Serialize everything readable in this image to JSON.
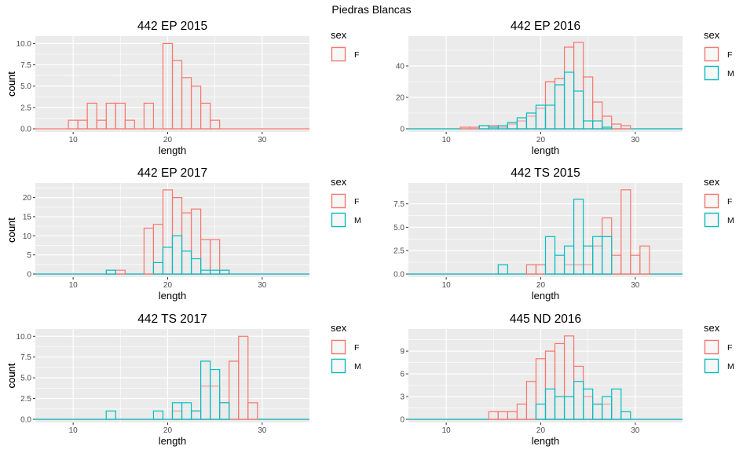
{
  "page": {
    "title": "Piedras Blancas"
  },
  "colors": {
    "F": "#F8766D",
    "M": "#00BFC4",
    "panel_bg": "#EBEBEB",
    "grid": "#FFFFFF",
    "text": "#000000",
    "tick_text": "#4D4D4D"
  },
  "chart_data": [
    {
      "type": "bar",
      "title": "442 EP 2015",
      "xlabel": "length",
      "ylabel": "count",
      "xlim": [
        6,
        35
      ],
      "ylim": [
        0,
        10.5
      ],
      "x_ticks": [
        10,
        20,
        30
      ],
      "y_ticks": [
        0,
        2.5,
        5,
        7.5,
        10
      ],
      "y_tick_labels": [
        "0.0",
        "2.5",
        "5.0",
        "7.5",
        "10.0"
      ],
      "legend": {
        "title": "sex",
        "items": [
          "F"
        ],
        "position": "right"
      },
      "series": [
        {
          "name": "F",
          "x": [
            10,
            11,
            12,
            13,
            14,
            15,
            16,
            17,
            18,
            19,
            20,
            21,
            22,
            23,
            24,
            25
          ],
          "values": [
            1,
            1,
            3,
            1,
            3,
            3,
            1,
            0,
            3,
            0,
            10,
            8,
            6,
            5,
            3,
            1
          ]
        }
      ]
    },
    {
      "type": "bar",
      "title": "442 EP 2016",
      "xlabel": "length",
      "ylabel": "count",
      "xlim": [
        6,
        35
      ],
      "ylim": [
        0,
        57
      ],
      "x_ticks": [
        10,
        20,
        30
      ],
      "y_ticks": [
        0,
        20,
        40
      ],
      "y_tick_labels": [
        "0",
        "20",
        "40"
      ],
      "legend": {
        "title": "sex",
        "items": [
          "F",
          "M"
        ],
        "position": "right"
      },
      "series": [
        {
          "name": "F",
          "x": [
            12,
            13,
            14,
            15,
            16,
            17,
            18,
            19,
            20,
            21,
            22,
            23,
            24,
            25,
            26,
            27,
            28,
            29
          ],
          "values": [
            1,
            1,
            2,
            2,
            1,
            3,
            5,
            8,
            13,
            30,
            32,
            52,
            55,
            33,
            17,
            8,
            3,
            2
          ]
        },
        {
          "name": "M",
          "x": [
            14,
            15,
            16,
            17,
            18,
            19,
            20,
            21,
            22,
            23,
            24,
            25,
            26,
            27
          ],
          "values": [
            2,
            1,
            2,
            4,
            7,
            10,
            15,
            15,
            28,
            36,
            24,
            5,
            5,
            1
          ]
        }
      ]
    },
    {
      "type": "bar",
      "title": "442 EP 2017",
      "xlabel": "length",
      "ylabel": "count",
      "xlim": [
        6,
        35
      ],
      "ylim": [
        0,
        23
      ],
      "x_ticks": [
        10,
        20,
        30
      ],
      "y_ticks": [
        0,
        5,
        10,
        15,
        20
      ],
      "y_tick_labels": [
        "0",
        "5",
        "10",
        "15",
        "20"
      ],
      "legend": {
        "title": "sex",
        "items": [
          "F",
          "M"
        ],
        "position": "right"
      },
      "series": [
        {
          "name": "F",
          "x": [
            14,
            15,
            18,
            19,
            20,
            21,
            22,
            23,
            24,
            25,
            26
          ],
          "values": [
            1,
            1,
            12,
            13,
            22,
            20,
            16,
            17,
            9,
            9,
            1
          ]
        },
        {
          "name": "M",
          "x": [
            14,
            15,
            19,
            20,
            21,
            22,
            23,
            24,
            25,
            26
          ],
          "values": [
            1,
            0,
            3,
            7,
            10,
            6,
            4,
            1,
            1,
            1
          ]
        }
      ]
    },
    {
      "type": "bar",
      "title": "442 TS 2015",
      "xlabel": "length",
      "ylabel": "count",
      "xlim": [
        6,
        35
      ],
      "ylim": [
        0,
        9.4
      ],
      "x_ticks": [
        10,
        20,
        30
      ],
      "y_ticks": [
        0,
        2.5,
        5,
        7.5
      ],
      "y_tick_labels": [
        "0.0",
        "2.5",
        "5.0",
        "7.5"
      ],
      "legend": {
        "title": "sex",
        "items": [
          "F",
          "M"
        ],
        "position": "right"
      },
      "series": [
        {
          "name": "F",
          "x": [
            19,
            20,
            23,
            24,
            25,
            26,
            27,
            28,
            29,
            30,
            31
          ],
          "values": [
            1,
            1,
            1,
            1,
            1,
            3,
            6,
            2,
            9,
            2,
            3
          ]
        },
        {
          "name": "M",
          "x": [
            16,
            21,
            22,
            23,
            24,
            25,
            26,
            27
          ],
          "values": [
            1,
            4,
            2,
            3,
            8,
            3,
            4,
            4
          ]
        }
      ]
    },
    {
      "type": "bar",
      "title": "442 TS 2017",
      "xlabel": "length",
      "ylabel": "count",
      "xlim": [
        6,
        35
      ],
      "ylim": [
        0,
        10.5
      ],
      "x_ticks": [
        10,
        20,
        30
      ],
      "y_ticks": [
        0,
        2.5,
        5,
        7.5,
        10
      ],
      "y_tick_labels": [
        "0.0",
        "2.5",
        "5.0",
        "7.5",
        "10.0"
      ],
      "legend": {
        "title": "sex",
        "items": [
          "F",
          "M"
        ],
        "position": "right"
      },
      "series": [
        {
          "name": "F",
          "x": [
            21,
            23,
            24,
            25,
            26,
            27,
            28,
            29
          ],
          "values": [
            1,
            1,
            4,
            4,
            2,
            7,
            10,
            2
          ]
        },
        {
          "name": "M",
          "x": [
            14,
            19,
            21,
            22,
            23,
            24,
            25,
            26
          ],
          "values": [
            1,
            1,
            2,
            2,
            1,
            7,
            6,
            2
          ]
        }
      ]
    },
    {
      "type": "bar",
      "title": "445 ND 2016",
      "xlabel": "length",
      "ylabel": "count",
      "xlim": [
        6,
        35
      ],
      "ylim": [
        0,
        11.5
      ],
      "x_ticks": [
        10,
        20,
        30
      ],
      "y_ticks": [
        0,
        3,
        6,
        9
      ],
      "y_tick_labels": [
        "0",
        "3",
        "6",
        "9"
      ],
      "legend": {
        "title": "sex",
        "items": [
          "F",
          "M"
        ],
        "position": "right"
      },
      "series": [
        {
          "name": "F",
          "x": [
            15,
            16,
            17,
            18,
            19,
            20,
            21,
            22,
            23,
            24,
            25,
            26,
            27
          ],
          "values": [
            1,
            1,
            1,
            2,
            5,
            8,
            9,
            10,
            11,
            7,
            3,
            2,
            2
          ]
        },
        {
          "name": "M",
          "x": [
            20,
            21,
            22,
            23,
            24,
            25,
            26,
            27,
            28,
            29
          ],
          "values": [
            2,
            4,
            3,
            3,
            5,
            4,
            2,
            3,
            4,
            1
          ]
        }
      ]
    }
  ]
}
